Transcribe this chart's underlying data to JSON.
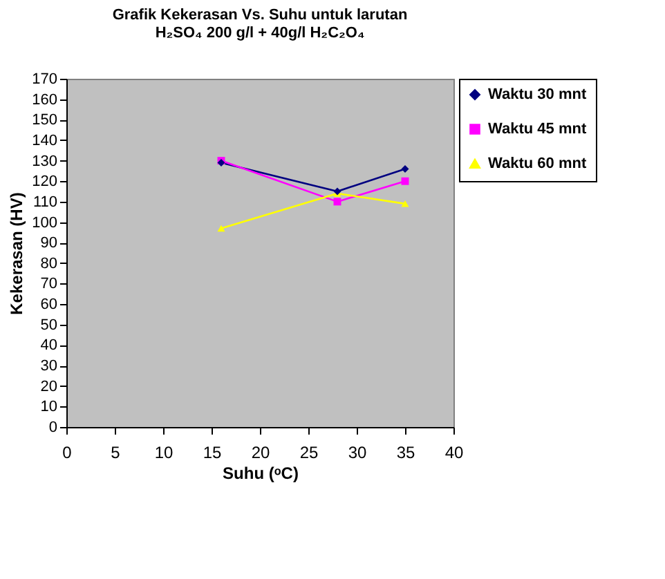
{
  "chart_data": {
    "type": "line",
    "title": [
      "Grafik Kekerasan Vs. Suhu untuk larutan",
      "H₂SO₄ 200 g/l + 40g/l H₂C₂O₄"
    ],
    "xlabel": "Suhu (ᵒC)",
    "ylabel": "Kekerasan (HV)",
    "x": [
      16,
      28,
      35
    ],
    "series": [
      {
        "name": "Waktu 30 mnt",
        "color": "#000080",
        "marker": "diamond",
        "values": [
          129,
          115,
          126
        ]
      },
      {
        "name": "Waktu 45 mnt",
        "color": "#ff00ff",
        "marker": "square",
        "values": [
          130,
          110,
          120
        ]
      },
      {
        "name": "Waktu 60 mnt",
        "color": "#ffff00",
        "marker": "triangle",
        "values": [
          97,
          114,
          109
        ]
      }
    ],
    "xlim": [
      0,
      40
    ],
    "xticks": [
      0,
      5,
      10,
      15,
      20,
      25,
      30,
      35,
      40
    ],
    "ylim": [
      0,
      170
    ],
    "yticks": [
      0,
      10,
      20,
      30,
      40,
      50,
      60,
      70,
      80,
      90,
      100,
      110,
      120,
      130,
      140,
      150,
      160,
      170
    ],
    "grid": false,
    "legend": "right"
  }
}
